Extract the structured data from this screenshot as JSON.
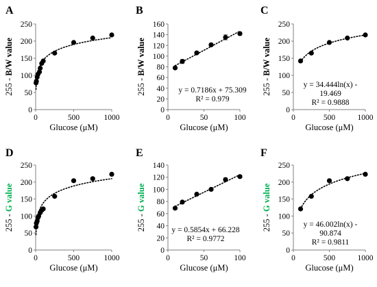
{
  "colors": {
    "axis": "#7f7f7f",
    "point": "#000000",
    "trend": "#000000",
    "green_label": "#00b050",
    "black": "#000000"
  },
  "chart_data": [
    {
      "type": "scatter",
      "panel_label": "A",
      "xlabel": "Glucose (μM)",
      "ylabel_prefix": "255 - ",
      "ylabel_main": "B/W value",
      "ylabel_color": "#000000",
      "xlim": [
        0,
        1000
      ],
      "ylim": [
        0,
        250
      ],
      "xticks": [
        0,
        500,
        1000
      ],
      "yticks": [
        0,
        50,
        100,
        150,
        200,
        250
      ],
      "trendline": "log",
      "points": [
        {
          "x": 5,
          "y": 78
        },
        {
          "x": 10,
          "y": 83
        },
        {
          "x": 20,
          "y": 95
        },
        {
          "x": 30,
          "y": 103
        },
        {
          "x": 50,
          "y": 110
        },
        {
          "x": 60,
          "y": 121
        },
        {
          "x": 80,
          "y": 135
        },
        {
          "x": 100,
          "y": 142
        },
        {
          "x": 250,
          "y": 165
        },
        {
          "x": 500,
          "y": 196
        },
        {
          "x": 750,
          "y": 209
        },
        {
          "x": 1000,
          "y": 218
        }
      ],
      "equation": [],
      "grid": false
    },
    {
      "type": "scatter",
      "panel_label": "B",
      "xlabel": "Glucose (μM)",
      "ylabel_prefix": "255 - ",
      "ylabel_main": "B/W value",
      "ylabel_color": "#000000",
      "xlim": [
        0,
        100
      ],
      "ylim": [
        0,
        160
      ],
      "xticks": [
        0,
        50,
        100
      ],
      "yticks": [
        0,
        20,
        40,
        60,
        80,
        100,
        120,
        140,
        160
      ],
      "trendline": "linear",
      "points": [
        {
          "x": 10,
          "y": 78
        },
        {
          "x": 20,
          "y": 90,
          "err": 4
        },
        {
          "x": 40,
          "y": 106
        },
        {
          "x": 60,
          "y": 121,
          "err": 3
        },
        {
          "x": 80,
          "y": 135,
          "err": 5
        },
        {
          "x": 100,
          "y": 142,
          "err": 3
        }
      ],
      "equation": [
        "y = 0.7186x + 75.309",
        "R² = 0.979"
      ],
      "grid": false
    },
    {
      "type": "scatter",
      "panel_label": "C",
      "xlabel": "Glucose (μM)",
      "ylabel_prefix": "255 - ",
      "ylabel_main": "B/W value",
      "ylabel_color": "#000000",
      "xlim": [
        0,
        1000
      ],
      "ylim": [
        0,
        250
      ],
      "xticks": [
        0,
        500,
        1000
      ],
      "yticks": [
        0,
        50,
        100,
        150,
        200,
        250
      ],
      "trendline": "log",
      "points": [
        {
          "x": 100,
          "y": 142
        },
        {
          "x": 250,
          "y": 165
        },
        {
          "x": 500,
          "y": 196
        },
        {
          "x": 750,
          "y": 209
        },
        {
          "x": 1000,
          "y": 218
        }
      ],
      "equation": [
        "y = 34.444ln(x) -",
        "19.469",
        "R² = 0.9888"
      ],
      "grid": false
    },
    {
      "type": "scatter",
      "panel_label": "D",
      "xlabel": "Glucose (μM)",
      "ylabel_prefix": "255 - ",
      "ylabel_main": "G value",
      "ylabel_color": "#00b050",
      "xlim": [
        0,
        1000
      ],
      "ylim": [
        0,
        250
      ],
      "xticks": [
        0,
        500,
        1000
      ],
      "yticks": [
        0,
        50,
        100,
        150,
        200,
        250
      ],
      "trendline": "log",
      "points": [
        {
          "x": 5,
          "y": 68
        },
        {
          "x": 10,
          "y": 79
        },
        {
          "x": 20,
          "y": 85
        },
        {
          "x": 30,
          "y": 95
        },
        {
          "x": 40,
          "y": 100
        },
        {
          "x": 60,
          "y": 110
        },
        {
          "x": 80,
          "y": 117
        },
        {
          "x": 100,
          "y": 121
        },
        {
          "x": 250,
          "y": 158
        },
        {
          "x": 500,
          "y": 204
        },
        {
          "x": 750,
          "y": 210
        },
        {
          "x": 1000,
          "y": 223
        }
      ],
      "equation": [],
      "grid": false
    },
    {
      "type": "scatter",
      "panel_label": "E",
      "xlabel": "Glucose (μM)",
      "ylabel_prefix": "255 - ",
      "ylabel_main": "G value",
      "ylabel_color": "#00b050",
      "xlim": [
        0,
        100
      ],
      "ylim": [
        0,
        140
      ],
      "xticks": [
        0,
        50,
        100
      ],
      "yticks": [
        0,
        20,
        40,
        60,
        80,
        100,
        120,
        140
      ],
      "trendline": "linear",
      "points": [
        {
          "x": 10,
          "y": 69
        },
        {
          "x": 20,
          "y": 79
        },
        {
          "x": 40,
          "y": 92
        },
        {
          "x": 60,
          "y": 100
        },
        {
          "x": 80,
          "y": 116,
          "err": 3
        },
        {
          "x": 100,
          "y": 121
        }
      ],
      "equation": [
        "y = 0.5854x + 66.228",
        "R² = 0.9772"
      ],
      "grid": false
    },
    {
      "type": "scatter",
      "panel_label": "F",
      "xlabel": "Glucose (μM)",
      "ylabel_prefix": "255 - ",
      "ylabel_main": "G value",
      "ylabel_color": "#00b050",
      "xlim": [
        0,
        1000
      ],
      "ylim": [
        0,
        250
      ],
      "xticks": [
        0,
        500,
        1000
      ],
      "yticks": [
        0,
        50,
        100,
        150,
        200,
        250
      ],
      "trendline": "log",
      "points": [
        {
          "x": 100,
          "y": 121
        },
        {
          "x": 250,
          "y": 158
        },
        {
          "x": 500,
          "y": 204
        },
        {
          "x": 750,
          "y": 210
        },
        {
          "x": 1000,
          "y": 223
        }
      ],
      "equation": [
        "y = 46.002ln(x) -",
        "90.874",
        "R² = 0.9811"
      ],
      "grid": false
    }
  ]
}
